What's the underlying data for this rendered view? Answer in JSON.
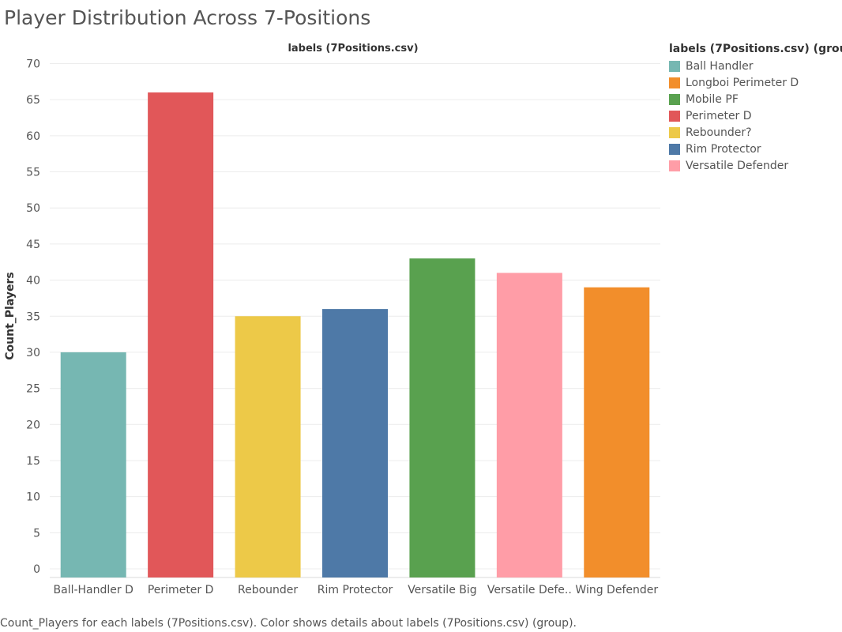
{
  "page": {
    "title": "Player Distribution Across 7-Positions",
    "caption": "Count_Players for each labels (7Positions.csv).  Color shows details about labels (7Positions.csv) (group)."
  },
  "legend": {
    "title": "labels (7Positions.csv) (group)",
    "items": [
      {
        "label": "Ball Handler",
        "color": "#76b7b2"
      },
      {
        "label": "Longboi Perimeter D",
        "color": "#f28e2b"
      },
      {
        "label": "Mobile PF",
        "color": "#59a14f"
      },
      {
        "label": "Perimeter D",
        "color": "#e15759"
      },
      {
        "label": "Rebounder?",
        "color": "#edc948"
      },
      {
        "label": "Rim Protector",
        "color": "#4e79a7"
      },
      {
        "label": "Versatile Defender",
        "color": "#ff9da7"
      }
    ]
  },
  "chart_data": {
    "type": "bar",
    "column_header": "labels (7Positions.csv)",
    "ylabel": "Count_Players",
    "ylim": [
      0,
      70
    ],
    "yticks": [
      0,
      5,
      10,
      15,
      20,
      25,
      30,
      35,
      40,
      45,
      50,
      55,
      60,
      65,
      70
    ],
    "grid": true,
    "legend_position": "top-right",
    "categories": [
      "Ball-Handler D",
      "Perimeter D",
      "Rebounder",
      "Rim Protector",
      "Versatile Big",
      "Versatile Defe..",
      "Wing Defender"
    ],
    "values": [
      30,
      66,
      35,
      36,
      43,
      41,
      39
    ],
    "colors": [
      "#76b7b2",
      "#e15759",
      "#edc948",
      "#4e79a7",
      "#59a14f",
      "#ff9da7",
      "#f28e2b"
    ]
  }
}
